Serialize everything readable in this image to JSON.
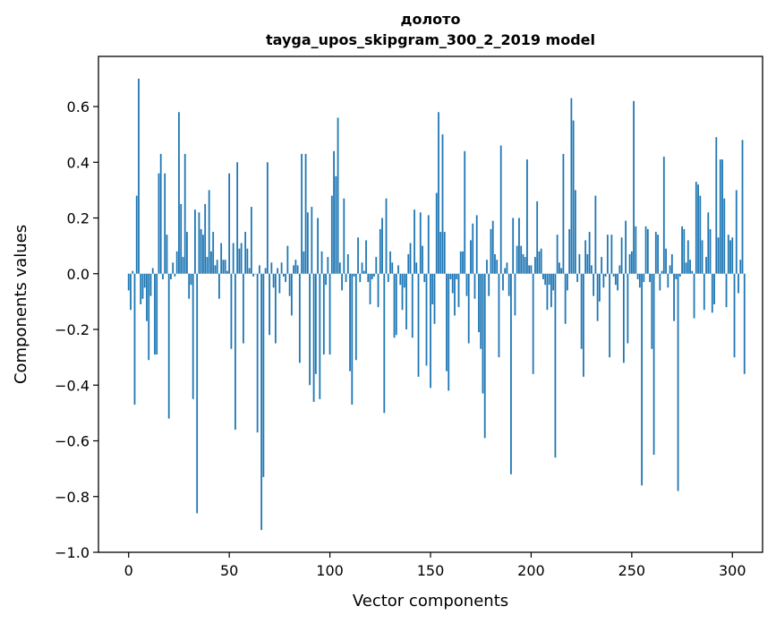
{
  "chart_data": {
    "type": "bar",
    "title_lines": [
      "долото",
      "tayga_upos_skipgram_300_2_2019 model"
    ],
    "xlabel": "Vector components",
    "ylabel": "Components values",
    "xlim": [
      -15,
      315
    ],
    "ylim": [
      -1.0,
      0.78
    ],
    "xticks": [
      0,
      50,
      100,
      150,
      200,
      250,
      300
    ],
    "yticks": [
      -1.0,
      -0.8,
      -0.6,
      -0.4,
      -0.2,
      0.0,
      0.2,
      0.4,
      0.6
    ],
    "ytick_labels": [
      "−1.0",
      "−0.8",
      "−0.6",
      "−0.4",
      "−0.2",
      "0.0",
      "0.2",
      "0.4",
      "0.6"
    ],
    "bar_color": "#1f77b4",
    "grid": false,
    "values": [
      -0.06,
      -0.13,
      0.01,
      -0.47,
      0.28,
      0.7,
      -0.11,
      -0.09,
      -0.05,
      -0.17,
      -0.31,
      -0.08,
      0.02,
      -0.29,
      -0.29,
      0.36,
      0.43,
      -0.02,
      0.36,
      0.14,
      -0.52,
      -0.02,
      0.04,
      -0.01,
      0.08,
      0.58,
      0.25,
      0.06,
      0.43,
      0.15,
      -0.09,
      -0.04,
      -0.45,
      0.23,
      -0.86,
      0.22,
      0.16,
      0.14,
      0.25,
      0.06,
      0.3,
      0.08,
      0.15,
      0.03,
      0.05,
      -0.09,
      0.11,
      0.05,
      0.05,
      0.01,
      0.36,
      -0.27,
      0.11,
      -0.56,
      0.4,
      0.09,
      0.11,
      -0.25,
      0.15,
      0.09,
      0.02,
      0.24,
      -0.01,
      0.0,
      -0.57,
      0.03,
      -0.92,
      -0.73,
      0.02,
      0.4,
      -0.22,
      0.04,
      -0.05,
      -0.25,
      0.02,
      -0.07,
      0.04,
      -0.01,
      -0.03,
      0.1,
      -0.08,
      -0.15,
      0.03,
      0.05,
      0.03,
      -0.32,
      0.43,
      0.08,
      0.43,
      0.22,
      -0.4,
      0.24,
      -0.46,
      -0.36,
      0.2,
      -0.45,
      0.08,
      -0.29,
      -0.04,
      0.06,
      -0.29,
      0.28,
      0.44,
      0.35,
      0.56,
      0.04,
      -0.06,
      0.27,
      -0.03,
      0.07,
      -0.35,
      -0.47,
      -0.01,
      -0.31,
      0.13,
      -0.03,
      0.04,
      0.01,
      0.12,
      -0.03,
      -0.11,
      -0.02,
      -0.01,
      0.06,
      -0.12,
      0.16,
      0.2,
      -0.5,
      0.27,
      -0.03,
      0.08,
      0.04,
      -0.23,
      -0.22,
      0.03,
      -0.04,
      -0.13,
      -0.05,
      -0.2,
      0.07,
      0.11,
      -0.23,
      0.23,
      0.04,
      -0.37,
      0.22,
      0.1,
      -0.03,
      -0.33,
      0.21,
      -0.41,
      -0.11,
      -0.18,
      0.29,
      0.58,
      0.15,
      0.5,
      0.15,
      -0.35,
      -0.42,
      -0.02,
      -0.07,
      -0.15,
      -0.02,
      -0.12,
      0.08,
      0.08,
      0.44,
      -0.08,
      -0.25,
      0.12,
      0.18,
      -0.09,
      0.21,
      -0.21,
      -0.27,
      -0.43,
      -0.59,
      0.05,
      -0.08,
      0.16,
      0.19,
      0.07,
      0.05,
      -0.3,
      0.46,
      -0.06,
      0.02,
      0.04,
      -0.08,
      -0.72,
      0.2,
      -0.15,
      0.1,
      0.2,
      0.1,
      0.07,
      0.06,
      0.41,
      0.03,
      0.03,
      -0.36,
      0.06,
      0.26,
      0.08,
      0.09,
      -0.02,
      -0.04,
      -0.13,
      -0.04,
      -0.12,
      -0.06,
      -0.66,
      0.14,
      0.04,
      0.02,
      0.43,
      -0.18,
      -0.06,
      0.16,
      0.63,
      0.55,
      0.3,
      -0.03,
      0.07,
      -0.27,
      -0.37,
      0.12,
      0.07,
      0.15,
      0.03,
      -0.08,
      0.28,
      -0.17,
      -0.1,
      0.06,
      -0.05,
      -0.01,
      0.14,
      -0.3,
      0.14,
      -0.01,
      -0.04,
      -0.06,
      0.03,
      0.13,
      -0.32,
      0.19,
      -0.25,
      0.07,
      0.08,
      0.62,
      0.17,
      -0.02,
      -0.05,
      -0.76,
      -0.03,
      0.17,
      0.16,
      -0.03,
      -0.27,
      -0.65,
      0.15,
      0.14,
      -0.06,
      0.01,
      0.42,
      0.09,
      -0.05,
      0.03,
      0.07,
      -0.17,
      -0.02,
      -0.78,
      -0.01,
      0.17,
      0.16,
      0.04,
      0.12,
      0.05,
      0.01,
      -0.16,
      0.33,
      0.32,
      0.28,
      0.12,
      -0.13,
      0.06,
      0.22,
      0.16,
      -0.14,
      -0.11,
      0.49,
      0.13,
      0.41,
      0.41,
      0.27,
      -0.12,
      0.14,
      0.12,
      0.13,
      -0.3,
      0.3,
      -0.07,
      0.05,
      0.48,
      -0.36
    ]
  }
}
